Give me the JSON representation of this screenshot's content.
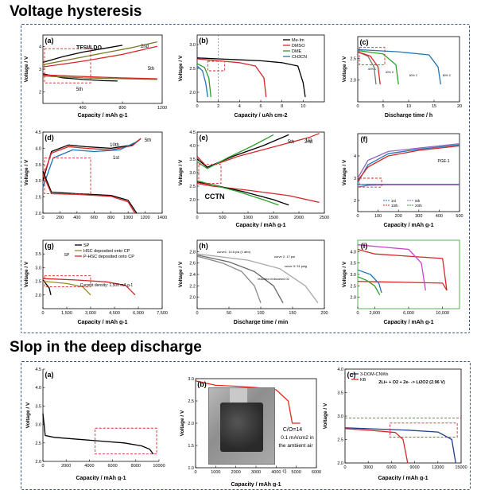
{
  "sections": {
    "top_title": "Voltage hysteresis",
    "bottom_title": "Slop in the deep discharge"
  },
  "colors": {
    "frame": "#3b5b82",
    "highlight": "#d62728"
  },
  "chart_data": [
    {
      "id": "a",
      "panel_label": "(a)",
      "type": "line",
      "annotations": [
        "TFSI/LDO",
        "2nd",
        "5th",
        "5th"
      ],
      "xlabel": "Capacity / mAh g-1",
      "ylabel": "Voltage / V",
      "xlim": [
        0,
        1200
      ],
      "ylim": [
        1.5,
        4.5
      ],
      "xticks": [
        "400",
        "800",
        "1200"
      ],
      "yticks": [
        "2",
        "3",
        "4"
      ],
      "series": [
        {
          "color": "#000000",
          "x": [
            0,
            200,
            400,
            600,
            800
          ],
          "y": [
            3.3,
            3.55,
            3.75,
            3.9,
            4.05
          ]
        },
        {
          "color": "#7a7a2a",
          "x": [
            0,
            300,
            600,
            900,
            1150
          ],
          "y": [
            3.2,
            3.45,
            3.7,
            3.95,
            4.2
          ]
        },
        {
          "color": "#d62728",
          "x": [
            0,
            400,
            800,
            1150
          ],
          "y": [
            3.1,
            3.35,
            3.65,
            4.0
          ]
        },
        {
          "color": "#000000",
          "x": [
            0,
            200,
            400,
            600,
            750
          ],
          "y": [
            2.8,
            2.62,
            2.55,
            2.5,
            2.48
          ]
        },
        {
          "color": "#7a7a2a",
          "x": [
            0,
            400,
            800,
            1150
          ],
          "y": [
            2.7,
            2.62,
            2.58,
            2.55
          ]
        },
        {
          "color": "#d62728",
          "x": [
            0,
            400,
            800,
            1150
          ],
          "y": [
            2.75,
            2.68,
            2.62,
            2.58
          ]
        }
      ]
    },
    {
      "id": "b",
      "panel_label": "(b)",
      "type": "line",
      "xlabel": "Capacity / uAh cm-2",
      "ylabel": "Voltage / V",
      "xlim": [
        0,
        12
      ],
      "ylim": [
        1.8,
        3.2
      ],
      "xticks": [
        "0",
        "2",
        "4",
        "6",
        "8",
        "10"
      ],
      "yticks": [
        "2.0",
        "2.5",
        "3.0"
      ],
      "series": [
        {
          "name": "Me-Im",
          "color": "#000000",
          "x": [
            0,
            2,
            4,
            6,
            8,
            9.5,
            10,
            10.2
          ],
          "y": [
            2.72,
            2.7,
            2.68,
            2.66,
            2.62,
            2.55,
            2.2,
            1.9
          ]
        },
        {
          "name": "DMSO",
          "color": "#d62728",
          "x": [
            0,
            2,
            4,
            5.5,
            6.3,
            6.5
          ],
          "y": [
            2.7,
            2.66,
            2.62,
            2.55,
            2.3,
            1.9
          ]
        },
        {
          "name": "DME",
          "color": "#2ca02c",
          "x": [
            0,
            0.7,
            1.1,
            1.3
          ],
          "y": [
            2.6,
            2.52,
            2.3,
            1.9
          ]
        },
        {
          "name": "CH3CN",
          "color": "#1f77b4",
          "x": [
            0,
            0.5,
            0.8,
            1.0
          ],
          "y": [
            2.55,
            2.45,
            2.2,
            1.9
          ]
        }
      ]
    },
    {
      "id": "c",
      "panel_label": "(c)",
      "type": "line",
      "xlabel": "Discharge time / h",
      "ylabel": "Voltage / V",
      "xlim": [
        0,
        20
      ],
      "ylim": [
        1.5,
        3.0
      ],
      "xticks": [
        "0",
        "5",
        "10",
        "15",
        "20"
      ],
      "yticks": [
        "2.0",
        "2.5"
      ],
      "annotations": [
        "40% C",
        "40% C",
        "60% C",
        "80% C"
      ],
      "series": [
        {
          "color": "#777777",
          "x": [
            0,
            2,
            3.2,
            3.6
          ],
          "y": [
            2.65,
            2.55,
            2.3,
            1.9
          ]
        },
        {
          "color": "#d62728",
          "x": [
            0,
            2.5,
            4.0,
            4.4
          ],
          "y": [
            2.65,
            2.55,
            2.3,
            1.9
          ]
        },
        {
          "color": "#2ca02c",
          "x": [
            0,
            5,
            7.5,
            8.0
          ],
          "y": [
            2.68,
            2.6,
            2.35,
            1.9
          ]
        },
        {
          "color": "#1f77b4",
          "x": [
            0,
            8,
            14,
            15.8,
            16.3
          ],
          "y": [
            2.7,
            2.65,
            2.58,
            2.3,
            1.9
          ]
        }
      ]
    },
    {
      "id": "d",
      "panel_label": "(d)",
      "type": "line",
      "xlabel": "",
      "ylabel": "Voltage / V",
      "xlim": [
        0,
        1400
      ],
      "ylim": [
        2.0,
        4.5
      ],
      "xticks": [
        "0",
        "200",
        "400",
        "600",
        "800",
        "1000",
        "1200",
        "1400"
      ],
      "yticks": [
        "2.0",
        "2.5",
        "3.0",
        "3.5",
        "4.0",
        "4.5"
      ],
      "annotations": [
        "10th",
        "5th",
        "1st"
      ],
      "series": [
        {
          "color": "#000000",
          "x": [
            0,
            100,
            300,
            500,
            800,
            1050,
            1150
          ],
          "y": [
            3.0,
            3.9,
            4.1,
            4.05,
            4.0,
            4.1,
            4.3
          ]
        },
        {
          "color": "#d62728",
          "x": [
            0,
            100,
            300,
            500,
            800,
            1050,
            1150
          ],
          "y": [
            3.1,
            3.85,
            4.05,
            4.0,
            3.95,
            4.08,
            4.3
          ]
        },
        {
          "color": "#1f77b4",
          "x": [
            0,
            120,
            350,
            600,
            900,
            1100
          ],
          "y": [
            2.8,
            3.7,
            3.95,
            3.9,
            3.95,
            4.2
          ]
        },
        {
          "color": "#000000",
          "x": [
            0,
            100,
            400,
            800,
            1000,
            1100
          ],
          "y": [
            3.3,
            2.65,
            2.6,
            2.55,
            2.4,
            2.0
          ]
        },
        {
          "color": "#d62728",
          "x": [
            0,
            100,
            400,
            800,
            1000,
            1080
          ],
          "y": [
            3.2,
            2.6,
            2.58,
            2.52,
            2.35,
            2.0
          ]
        }
      ]
    },
    {
      "id": "e",
      "panel_label": "(e)",
      "type": "line",
      "xlabel": "Capacity / mAh g-1",
      "ylabel": "Voltage / V",
      "xlim": [
        0,
        2500
      ],
      "ylim": [
        1.5,
        4.5
      ],
      "xticks": [
        "0",
        "500",
        "1000",
        "1500",
        "2000",
        "2500"
      ],
      "yticks": [
        "2.0",
        "2.5",
        "3.0",
        "3.5",
        "4.0",
        "4.5"
      ],
      "annotations": [
        "CCTN",
        "5th",
        "2nd",
        "1st"
      ],
      "series": [
        {
          "color": "#d62728",
          "x": [
            0,
            200,
            800,
            1600,
            2200,
            2400
          ],
          "y": [
            3.6,
            3.2,
            3.6,
            4.0,
            4.3,
            4.45
          ]
        },
        {
          "color": "#000000",
          "x": [
            0,
            200,
            700,
            1300,
            1800
          ],
          "y": [
            3.5,
            3.2,
            3.6,
            4.0,
            4.4
          ]
        },
        {
          "color": "#2ca02c",
          "x": [
            0,
            200,
            600,
            1100,
            1500
          ],
          "y": [
            3.4,
            3.15,
            3.55,
            4.0,
            4.4
          ]
        },
        {
          "color": "#d62728",
          "x": [
            0,
            300,
            1000,
            1800,
            2400
          ],
          "y": [
            2.6,
            2.5,
            2.35,
            2.15,
            1.9
          ]
        },
        {
          "color": "#000000",
          "x": [
            0,
            300,
            900,
            1500,
            1800
          ],
          "y": [
            2.65,
            2.55,
            2.3,
            2.0,
            1.8
          ]
        },
        {
          "color": "#2ca02c",
          "x": [
            0,
            300,
            800,
            1300,
            1600
          ],
          "y": [
            2.7,
            2.55,
            2.3,
            2.0,
            1.8
          ]
        }
      ]
    },
    {
      "id": "f",
      "panel_label": "(f)",
      "type": "line",
      "xlabel": "Capacity / mAh g-1",
      "ylabel": "Voltage / V",
      "xlim": [
        0,
        500
      ],
      "ylim": [
        1.5,
        5.0
      ],
      "xticks": [
        "0",
        "100",
        "200",
        "300",
        "400",
        "500"
      ],
      "yticks": [
        "2",
        "3",
        "4"
      ],
      "annotations": [
        "PGE-1"
      ],
      "legend": [
        "1st",
        "5th",
        "10th",
        "20th"
      ],
      "series": [
        {
          "color": "#1f77b4",
          "x": [
            0,
            50,
            150,
            300,
            500
          ],
          "y": [
            2.8,
            3.6,
            4.1,
            4.3,
            4.5
          ]
        },
        {
          "color": "#9467bd",
          "x": [
            0,
            50,
            150,
            300,
            500
          ],
          "y": [
            3.0,
            3.8,
            4.2,
            4.35,
            4.55
          ]
        },
        {
          "color": "#d62728",
          "x": [
            0,
            50,
            150,
            300,
            500
          ],
          "y": [
            2.9,
            3.5,
            4.0,
            4.25,
            4.45
          ]
        },
        {
          "color": "#1f77b4",
          "x": [
            0,
            50,
            150,
            300,
            500
          ],
          "y": [
            2.7,
            2.72,
            2.72,
            2.72,
            2.72
          ]
        },
        {
          "color": "#9467bd",
          "x": [
            0,
            50,
            150,
            300,
            500
          ],
          "y": [
            2.6,
            2.68,
            2.7,
            2.7,
            2.7
          ]
        }
      ]
    },
    {
      "id": "g",
      "panel_label": "(g)",
      "type": "line",
      "xlabel": "Capacity / mAh g-1",
      "ylabel": "Voltage / V",
      "xlim": [
        0,
        7500
      ],
      "ylim": [
        1.5,
        4.0
      ],
      "xticks": [
        "0",
        "1,500",
        "3,000",
        "4,500",
        "6,000",
        "7,500"
      ],
      "yticks": [
        "2.0",
        "2.5",
        "3.0",
        "3.5"
      ],
      "annotations": [
        "Current density: 1,500 mA g-1",
        "SP"
      ],
      "series": [
        {
          "name": "SP",
          "color": "#000000",
          "x": [
            0,
            200,
            400,
            500
          ],
          "y": [
            2.55,
            2.4,
            2.25,
            2.0
          ]
        },
        {
          "name": "HSC deposited onto CP",
          "color": "#9a8a2a",
          "x": [
            0,
            1500,
            2500,
            3000
          ],
          "y": [
            2.5,
            2.42,
            2.3,
            2.0
          ]
        },
        {
          "name": "P-HSC deposited onto CP",
          "color": "#d62728",
          "x": [
            0,
            2000,
            4000,
            5200,
            5800
          ],
          "y": [
            2.6,
            2.55,
            2.48,
            2.35,
            2.0
          ]
        }
      ]
    },
    {
      "id": "h",
      "panel_label": "(h)",
      "type": "line",
      "xlabel": "Discharge time / min",
      "ylabel": "Voltage / V",
      "xlim": [
        0,
        200
      ],
      "ylim": [
        1.8,
        3.0
      ],
      "xticks": [
        "0",
        "50",
        "100",
        "150",
        "200"
      ],
      "yticks": [
        "2.0",
        "2.2",
        "2.4",
        "2.6",
        "2.8"
      ],
      "annotations": [
        "curve1: 14.6 psi (1 atm)",
        "curve 2: 17 psi",
        "curve 3: 31 psig",
        "reduction of dissolved O2"
      ],
      "series": [
        {
          "color": "#888888",
          "x": [
            0,
            40,
            70,
            90,
            100
          ],
          "y": [
            2.72,
            2.6,
            2.45,
            2.2,
            1.9
          ]
        },
        {
          "color": "#666666",
          "x": [
            0,
            50,
            90,
            120,
            135
          ],
          "y": [
            2.74,
            2.62,
            2.45,
            2.2,
            1.9
          ]
        },
        {
          "color": "#aaaaaa",
          "x": [
            0,
            80,
            130,
            170,
            190
          ],
          "y": [
            2.76,
            2.65,
            2.5,
            2.2,
            1.9
          ]
        }
      ]
    },
    {
      "id": "i",
      "panel_label": "(i)",
      "type": "line",
      "xlabel": "Capacity / mAh g-1",
      "ylabel": "Voltage / V",
      "xlim": [
        0,
        12000
      ],
      "ylim": [
        1.5,
        4.5
      ],
      "xticks": [
        "0",
        "2,000",
        "6,000",
        "10,000"
      ],
      "yticks": [
        "2.0",
        "2.5",
        "3.0",
        "3.5",
        "4.0"
      ],
      "series": [
        {
          "color": "#d62728",
          "x": [
            0,
            2000,
            6000,
            10000,
            10500
          ],
          "y": [
            4.1,
            3.9,
            3.8,
            3.7,
            2.3
          ]
        },
        {
          "color": "#d62728",
          "x": [
            0,
            2000,
            6000,
            10000,
            10500
          ],
          "y": [
            2.7,
            2.68,
            2.65,
            2.62,
            2.3
          ]
        },
        {
          "color": "#1f77b4",
          "x": [
            0,
            1500,
            2500,
            2800
          ],
          "y": [
            3.2,
            3.0,
            2.6,
            2.2
          ]
        },
        {
          "color": "#cc44cc",
          "x": [
            0,
            3000,
            6000,
            7500,
            8000
          ],
          "y": [
            4.3,
            4.2,
            4.1,
            3.5,
            2.3
          ]
        },
        {
          "color": "#2ca02c",
          "x": [
            0,
            1000,
            2000,
            2600
          ],
          "y": [
            2.9,
            2.75,
            2.5,
            2.1
          ]
        }
      ]
    },
    {
      "id": "b1",
      "panel_label": "(a)",
      "type": "line",
      "xlabel": "Capacity / mAh g-1",
      "ylabel": "Voltage / V",
      "xlim": [
        0,
        10000
      ],
      "ylim": [
        2.0,
        4.5
      ],
      "xticks": [
        "0",
        "2000",
        "4000",
        "6000",
        "8000",
        "10000"
      ],
      "yticks": [
        "2.0",
        "2.5",
        "3.0",
        "3.5",
        "4.0",
        "4.5"
      ],
      "series": [
        {
          "color": "#000000",
          "x": [
            0,
            200,
            1000,
            3000,
            5000,
            7000,
            8500,
            9200,
            9500
          ],
          "y": [
            3.3,
            2.7,
            2.65,
            2.6,
            2.55,
            2.5,
            2.42,
            2.33,
            2.2
          ]
        }
      ]
    },
    {
      "id": "b2",
      "panel_label": "(b)",
      "type": "line",
      "xlabel": "Capacity / mAh g-1",
      "ylabel": "Voltage / V",
      "xlim": [
        0,
        6000
      ],
      "ylim": [
        1.0,
        3.0
      ],
      "xticks": [
        "0",
        "1000",
        "2000",
        "3000",
        "4000",
        "5000",
        "6000"
      ],
      "yticks": [
        "1.0",
        "1.5",
        "2.0",
        "2.5",
        "3.0"
      ],
      "annotations": [
        "C/O=14",
        "0.1 mA/cm2 in",
        "the ambient air",
        "c)"
      ],
      "series": [
        {
          "color": "#e8261c",
          "x": [
            0,
            500,
            1000,
            2000,
            3000,
            4000,
            4600,
            4800,
            5200
          ],
          "y": [
            2.95,
            2.9,
            2.85,
            2.83,
            2.8,
            2.75,
            2.5,
            2.0,
            2.0
          ]
        }
      ]
    },
    {
      "id": "b3",
      "panel_label": "(c)",
      "type": "line",
      "xlabel": "Capacity / mAh g-1",
      "ylabel": "Voltage / V",
      "xlim": [
        0,
        15000
      ],
      "ylim": [
        2.0,
        4.0
      ],
      "xticks": [
        "0",
        "3000",
        "6000",
        "9000",
        "12000",
        "15000"
      ],
      "yticks": [
        "2.0",
        "2.5",
        "3.0",
        "3.5",
        "4.0"
      ],
      "annotations": [
        "2Li+ + O2 + 2e- -> Li2O2 (2.96 V)"
      ],
      "series": [
        {
          "name": "3-DOM-CNWs",
          "color": "#1f3f8f",
          "x": [
            0,
            3000,
            8000,
            12000,
            13800,
            14300
          ],
          "y": [
            2.75,
            2.73,
            2.7,
            2.66,
            2.5,
            2.0
          ]
        },
        {
          "name": "KB",
          "color": "#d62728",
          "x": [
            0,
            3000,
            6500,
            7500,
            8100
          ],
          "y": [
            2.73,
            2.7,
            2.65,
            2.5,
            2.0
          ]
        }
      ]
    }
  ]
}
